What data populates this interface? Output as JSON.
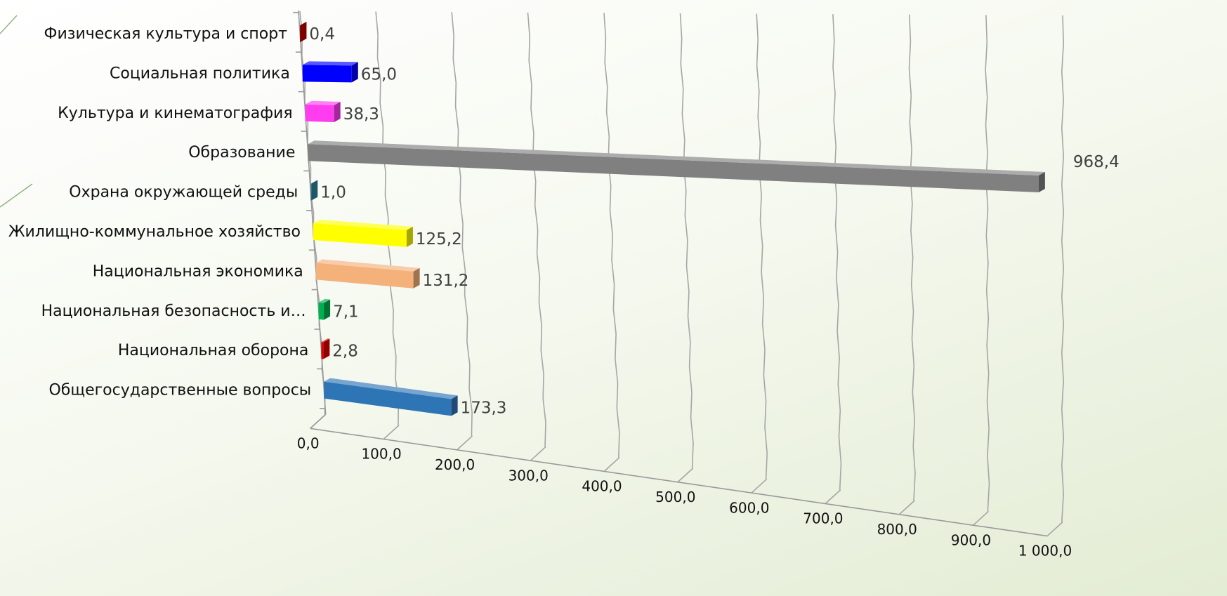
{
  "chart_data": {
    "type": "bar",
    "orientation": "horizontal",
    "style": "3d",
    "categories": [
      "Физическая культура и спорт",
      "Социальная политика",
      "Культура и кинематография",
      "Образование",
      "Охрана окружающей среды",
      "Жилищно-коммунальное хозяйство",
      "Национальная экономика",
      "Национальная безопасность и…",
      "Национальная оборона",
      "Общегосударственные вопросы"
    ],
    "values": [
      0.4,
      65.0,
      38.3,
      968.4,
      1.0,
      125.2,
      131.2,
      7.1,
      2.8,
      173.3
    ],
    "value_labels": [
      "0,4",
      "65,0",
      "38,3",
      "968,4",
      "1,0",
      "125,2",
      "131,2",
      "7,1",
      "2,8",
      "173,3"
    ],
    "colors": [
      "#c00000",
      "#0000ff",
      "#ff3cf0",
      "#808080",
      "#31849b",
      "#ffff00",
      "#f4b17a",
      "#00b050",
      "#e00000",
      "#2e75b6"
    ],
    "x_ticks": [
      0,
      100,
      200,
      300,
      400,
      500,
      600,
      700,
      800,
      900,
      1000
    ],
    "x_tick_labels": [
      "0,0",
      "100,0",
      "200,0",
      "300,0",
      "400,0",
      "500,0",
      "600,0",
      "700,0",
      "800,0",
      "900,0",
      "1 000,0"
    ],
    "xlim": [
      0,
      1000
    ],
    "grid": true,
    "legend": "none",
    "title": "",
    "xlabel": "",
    "ylabel": ""
  }
}
